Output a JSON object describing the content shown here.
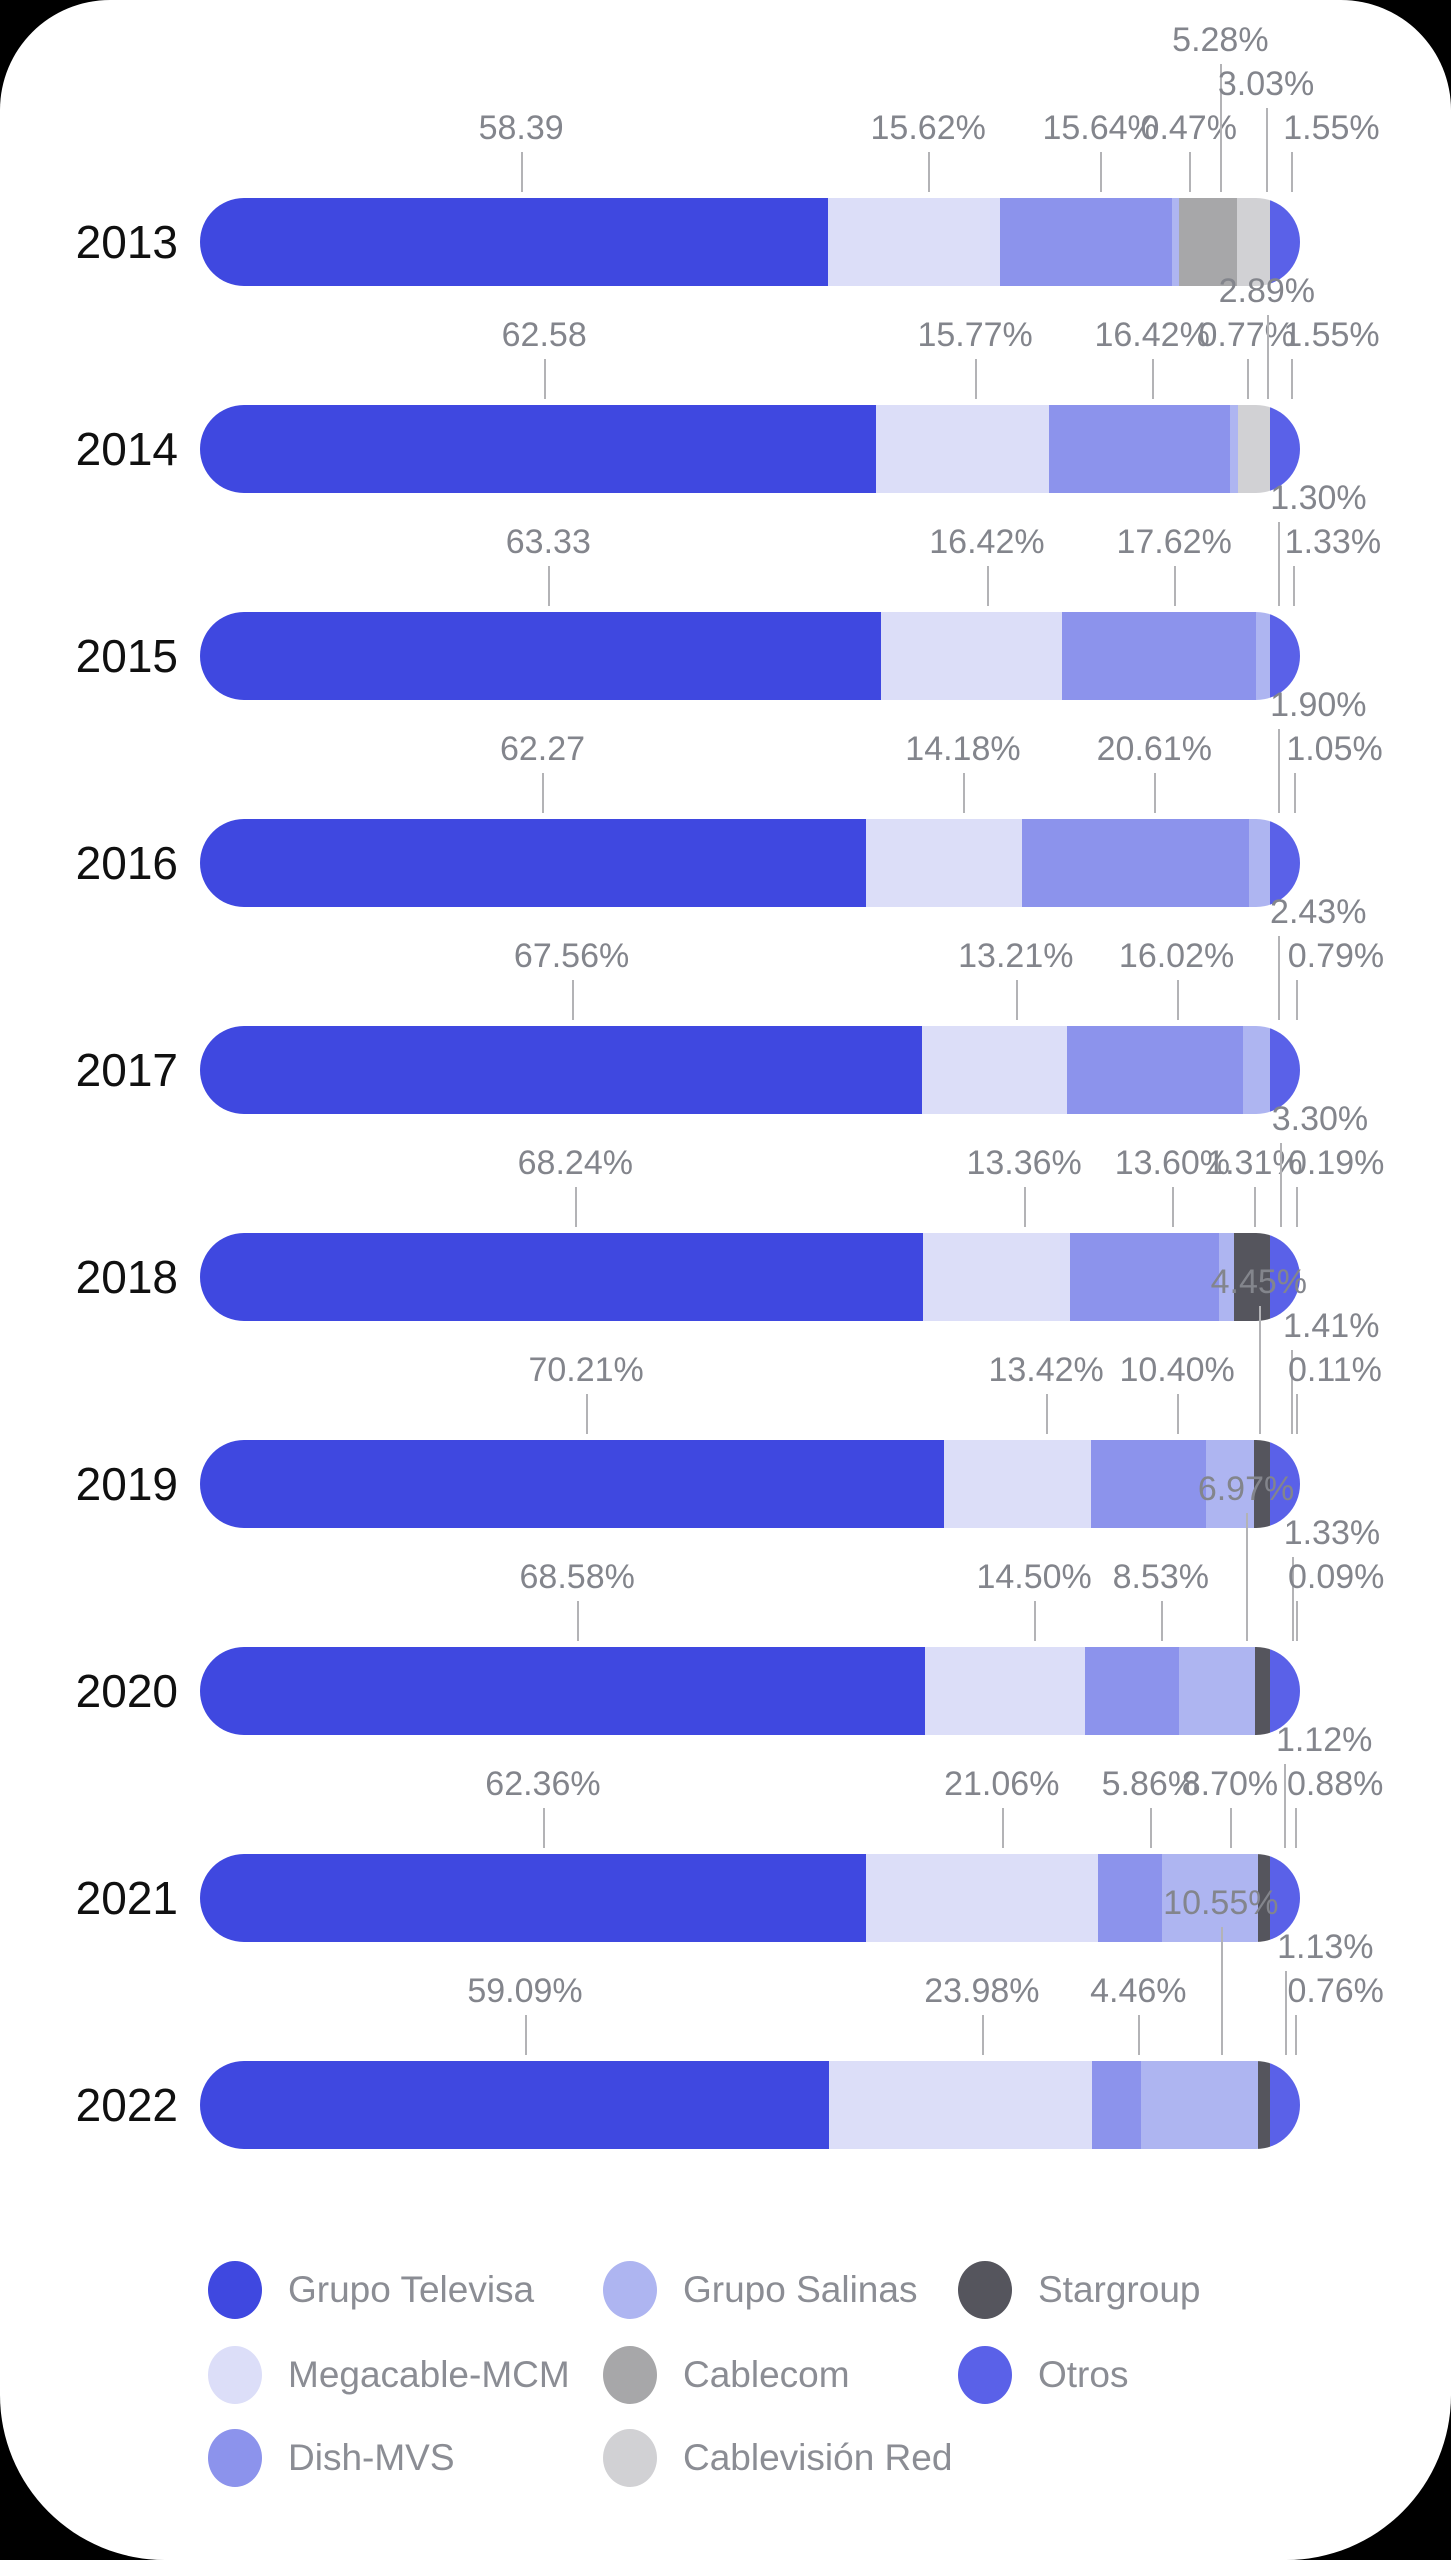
{
  "chart_data": {
    "type": "bar",
    "orientation": "horizontal",
    "stacked": true,
    "unit": "percent",
    "grid": false,
    "legend_position": "bottom",
    "categories": [
      "2013",
      "2014",
      "2015",
      "2016",
      "2017",
      "2018",
      "2019",
      "2020",
      "2021",
      "2022"
    ],
    "series_order": [
      "Grupo Televisa",
      "Megacable-MCM",
      "Dish-MVS",
      "Grupo Salinas",
      "Cablecom",
      "Cablevisión Red",
      "Stargroup",
      "Otros"
    ],
    "palette": {
      "Grupo Televisa": "#3f48e0",
      "Megacable-MCM": "#dcdef8",
      "Dish-MVS": "#8c93ec",
      "Grupo Salinas": "#aeb5f1",
      "Cablecom": "#a7a7a9",
      "Cablevisión Red": "#d1d1d4",
      "Stargroup": "#55555d",
      "Otros": "#5a61e8"
    },
    "rows": [
      {
        "year": "2013",
        "segments": [
          {
            "series": "Grupo Televisa",
            "value": 58.39,
            "label": "58.39",
            "stagger": 0
          },
          {
            "series": "Megacable-MCM",
            "value": 15.62,
            "label": "15.62%",
            "stagger": 0
          },
          {
            "series": "Dish-MVS",
            "value": 15.64,
            "label": "15.64%",
            "stagger": 0
          },
          {
            "series": "Grupo Salinas",
            "value": 0.47,
            "label": "0.47%",
            "stagger": 0
          },
          {
            "series": "Cablecom",
            "value": 5.28,
            "label": "5.28%",
            "stagger": 2
          },
          {
            "series": "Cablevisión Red",
            "value": 3.03,
            "label": "3.03%",
            "stagger": 1
          },
          {
            "series": "Otros",
            "value": 1.55,
            "label": "1.55%",
            "stagger": 0
          }
        ]
      },
      {
        "year": "2014",
        "segments": [
          {
            "series": "Grupo Televisa",
            "value": 62.58,
            "label": "62.58",
            "stagger": 0
          },
          {
            "series": "Megacable-MCM",
            "value": 15.77,
            "label": "15.77%",
            "stagger": 0
          },
          {
            "series": "Dish-MVS",
            "value": 16.42,
            "label": "16.42%",
            "stagger": 0
          },
          {
            "series": "Grupo Salinas",
            "value": 0.77,
            "label": "0.77%",
            "stagger": 0
          },
          {
            "series": "Cablevisión Red",
            "value": 2.89,
            "label": "2.89%",
            "stagger": 1
          },
          {
            "series": "Otros",
            "value": 1.55,
            "label": "1.55%",
            "stagger": 0
          }
        ]
      },
      {
        "year": "2015",
        "segments": [
          {
            "series": "Grupo Televisa",
            "value": 63.33,
            "label": "63.33",
            "stagger": 0
          },
          {
            "series": "Megacable-MCM",
            "value": 16.42,
            "label": "16.42%",
            "stagger": 0
          },
          {
            "series": "Dish-MVS",
            "value": 17.62,
            "label": "17.62%",
            "stagger": 0
          },
          {
            "series": "Grupo Salinas",
            "value": 1.3,
            "label": "1.30%",
            "stagger": 1
          },
          {
            "series": "Otros",
            "value": 1.33,
            "label": "1.33%",
            "stagger": 0
          }
        ]
      },
      {
        "year": "2016",
        "segments": [
          {
            "series": "Grupo Televisa",
            "value": 62.27,
            "label": "62.27",
            "stagger": 0
          },
          {
            "series": "Megacable-MCM",
            "value": 14.18,
            "label": "14.18%",
            "stagger": 0
          },
          {
            "series": "Dish-MVS",
            "value": 20.61,
            "label": "20.61%",
            "stagger": 0
          },
          {
            "series": "Grupo Salinas",
            "value": 1.9,
            "label": "1.90%",
            "stagger": 1
          },
          {
            "series": "Otros",
            "value": 1.05,
            "label": "1.05%",
            "stagger": 0
          }
        ]
      },
      {
        "year": "2017",
        "segments": [
          {
            "series": "Grupo Televisa",
            "value": 67.56,
            "label": "67.56%",
            "stagger": 0
          },
          {
            "series": "Megacable-MCM",
            "value": 13.21,
            "label": "13.21%",
            "stagger": 0
          },
          {
            "series": "Dish-MVS",
            "value": 16.02,
            "label": "16.02%",
            "stagger": 0
          },
          {
            "series": "Grupo Salinas",
            "value": 2.43,
            "label": "2.43%",
            "stagger": 1
          },
          {
            "series": "Otros",
            "value": 0.79,
            "label": "0.79%",
            "stagger": 0
          }
        ]
      },
      {
        "year": "2018",
        "segments": [
          {
            "series": "Grupo Televisa",
            "value": 68.24,
            "label": "68.24%",
            "stagger": 0
          },
          {
            "series": "Megacable-MCM",
            "value": 13.36,
            "label": "13.36%",
            "stagger": 0
          },
          {
            "series": "Dish-MVS",
            "value": 13.6,
            "label": "13.60%",
            "stagger": 0
          },
          {
            "series": "Grupo Salinas",
            "value": 1.31,
            "label": "1.31%",
            "stagger": 0
          },
          {
            "series": "Stargroup",
            "value": 3.3,
            "label": "3.30%",
            "stagger": 1
          },
          {
            "series": "Otros",
            "value": 0.19,
            "label": "0.19%",
            "stagger": 0
          }
        ]
      },
      {
        "year": "2019",
        "segments": [
          {
            "series": "Grupo Televisa",
            "value": 70.21,
            "label": "70.21%",
            "stagger": 0
          },
          {
            "series": "Megacable-MCM",
            "value": 13.42,
            "label": "13.42%",
            "stagger": 0
          },
          {
            "series": "Dish-MVS",
            "value": 10.4,
            "label": "10.40%",
            "stagger": 0
          },
          {
            "series": "Grupo Salinas",
            "value": 4.45,
            "label": "4.45%",
            "stagger": 2
          },
          {
            "series": "Stargroup",
            "value": 1.41,
            "label": "1.41%",
            "stagger": 1
          },
          {
            "series": "Otros",
            "value": 0.11,
            "label": "0.11%",
            "stagger": 0
          }
        ]
      },
      {
        "year": "2020",
        "segments": [
          {
            "series": "Grupo Televisa",
            "value": 68.58,
            "label": "68.58%",
            "stagger": 0
          },
          {
            "series": "Megacable-MCM",
            "value": 14.5,
            "label": "14.50%",
            "stagger": 0
          },
          {
            "series": "Dish-MVS",
            "value": 8.53,
            "label": "8.53%",
            "stagger": 0
          },
          {
            "series": "Grupo Salinas",
            "value": 6.97,
            "label": "6.97%",
            "stagger": 2
          },
          {
            "series": "Stargroup",
            "value": 1.33,
            "label": "1.33%",
            "stagger": 1
          },
          {
            "series": "Otros",
            "value": 0.09,
            "label": "0.09%",
            "stagger": 0
          }
        ]
      },
      {
        "year": "2021",
        "segments": [
          {
            "series": "Grupo Televisa",
            "value": 62.36,
            "label": "62.36%",
            "stagger": 0
          },
          {
            "series": "Megacable-MCM",
            "value": 21.06,
            "label": "21.06%",
            "stagger": 0
          },
          {
            "series": "Dish-MVS",
            "value": 5.86,
            "label": "5.86%",
            "stagger": 0
          },
          {
            "series": "Grupo Salinas",
            "value": 8.7,
            "label": "8.70%",
            "stagger": 0
          },
          {
            "series": "Stargroup",
            "value": 1.12,
            "label": "1.12%",
            "stagger": 1
          },
          {
            "series": "Otros",
            "value": 0.88,
            "label": "0.88%",
            "stagger": 0
          }
        ]
      },
      {
        "year": "2022",
        "segments": [
          {
            "series": "Grupo Televisa",
            "value": 59.09,
            "label": "59.09%",
            "stagger": 0
          },
          {
            "series": "Megacable-MCM",
            "value": 23.98,
            "label": "23.98%",
            "stagger": 0
          },
          {
            "series": "Dish-MVS",
            "value": 4.46,
            "label": "4.46%",
            "stagger": 0
          },
          {
            "series": "Grupo Salinas",
            "value": 10.55,
            "label": "10.55%",
            "stagger": 2
          },
          {
            "series": "Stargroup",
            "value": 1.13,
            "label": "1.13%",
            "stagger": 1
          },
          {
            "series": "Otros",
            "value": 0.76,
            "label": "0.76%",
            "stagger": 0
          }
        ]
      }
    ],
    "legend_columns": [
      [
        "Grupo Televisa",
        "Megacable-MCM",
        "Dish-MVS"
      ],
      [
        "Grupo Salinas",
        "Cablecom",
        "Cablevisión Red"
      ],
      [
        "Stargroup",
        "Otros"
      ]
    ]
  },
  "colors": {
    "background": "#000000",
    "card": "#ffffff",
    "value_label": "#83858c",
    "year_label": "#101010",
    "leader_line": "#b3b3b6",
    "legend_text": "#8b8d94"
  }
}
